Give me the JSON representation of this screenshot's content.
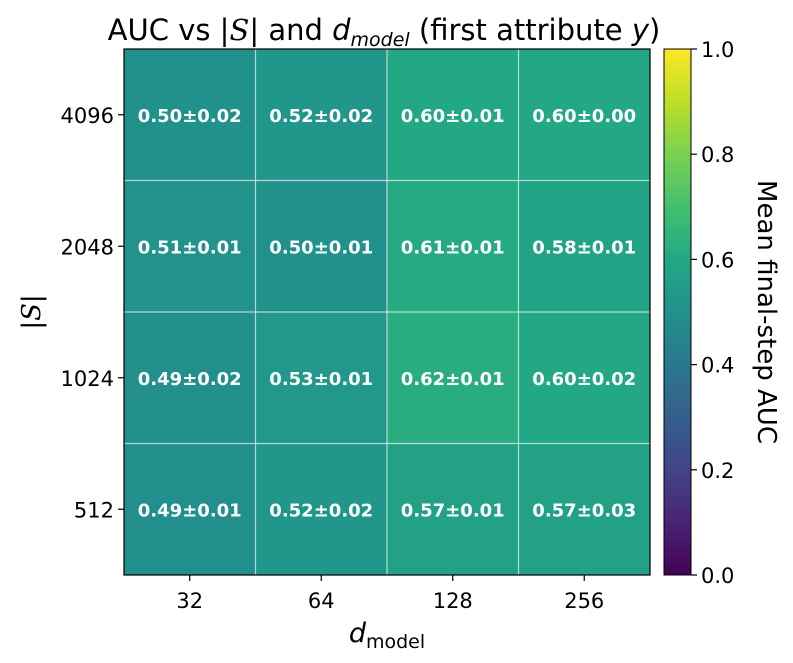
{
  "chart_data": {
    "type": "heatmap",
    "title": {
      "prefix": "AUC vs |",
      "set_symbol": "S",
      "mid": "| and ",
      "d_symbol": "d",
      "d_subscript": "model",
      "suffix_open": " (first attribute ",
      "y_symbol": "y",
      "suffix_close": ")"
    },
    "xlabel": {
      "symbol": "d",
      "subscript": "model"
    },
    "ylabel": {
      "left_bar": "|",
      "symbol": "S",
      "right_bar": "|"
    },
    "x_categories": [
      "32",
      "64",
      "128",
      "256"
    ],
    "y_categories": [
      "4096",
      "2048",
      "1024",
      "512"
    ],
    "values": [
      [
        0.5,
        0.52,
        0.6,
        0.6
      ],
      [
        0.51,
        0.5,
        0.61,
        0.58
      ],
      [
        0.49,
        0.53,
        0.62,
        0.6
      ],
      [
        0.49,
        0.52,
        0.57,
        0.57
      ]
    ],
    "cell_labels": [
      [
        "0.50±0.02",
        "0.52±0.02",
        "0.60±0.01",
        "0.60±0.00"
      ],
      [
        "0.51±0.01",
        "0.50±0.01",
        "0.61±0.01",
        "0.58±0.01"
      ],
      [
        "0.49±0.02",
        "0.53±0.01",
        "0.62±0.01",
        "0.60±0.02"
      ],
      [
        "0.49±0.01",
        "0.52±0.02",
        "0.57±0.01",
        "0.57±0.03"
      ]
    ],
    "colormap": "viridis",
    "vmin": 0.0,
    "vmax": 1.0,
    "colorbar": {
      "label": "Mean final-step AUC",
      "ticks": [
        0.0,
        0.2,
        0.4,
        0.6,
        0.8,
        1.0
      ],
      "tick_labels": [
        "0.0",
        "0.2",
        "0.4",
        "0.6",
        "0.8",
        "1.0"
      ]
    },
    "grid": true
  }
}
